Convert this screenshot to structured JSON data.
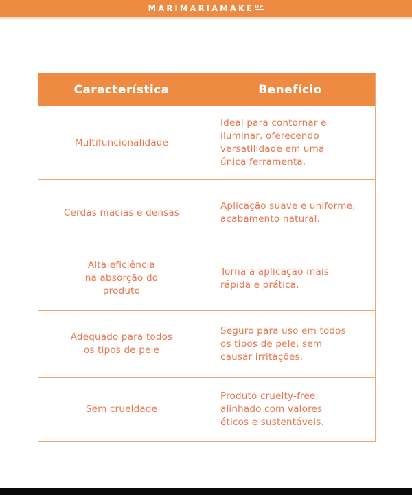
{
  "brand": {
    "logo_main": "MARIMARIAMAKE",
    "logo_sup": "UP"
  },
  "colors": {
    "banner_bg": "#EF8A43",
    "header_bg": "#EF8A43",
    "header_text": "#FFFFFF",
    "cell_text": "#E8764F",
    "table_border": "#F1A76F",
    "footer_bar": "#0A0A0A",
    "page_bg": "#FFFFFF"
  },
  "table": {
    "headers": [
      "Característica",
      "Benefício"
    ],
    "rows": [
      {
        "feature": "Multifuncionalidade",
        "benefit": "Ideal para contornar e\niluminar, oferecendo\nversatilidade em uma\núnica ferramenta."
      },
      {
        "feature": "Cerdas macias e densas",
        "benefit": "Aplicação suave e uniforme,\nacabamento natural."
      },
      {
        "feature": "Alta eficiência\nna absorção do\nproduto",
        "benefit": "Torna a aplicação mais\nrápida e prática."
      },
      {
        "feature": "Adequado para todos\nos tipos de pele",
        "benefit": "Seguro para uso em todos\nos tipos de pele, sem\ncausar irritações."
      },
      {
        "feature": "Sem crueldade",
        "benefit": "Produto cruelty-free,\nalinhado com valores\néticos e sustentáveis."
      }
    ]
  }
}
